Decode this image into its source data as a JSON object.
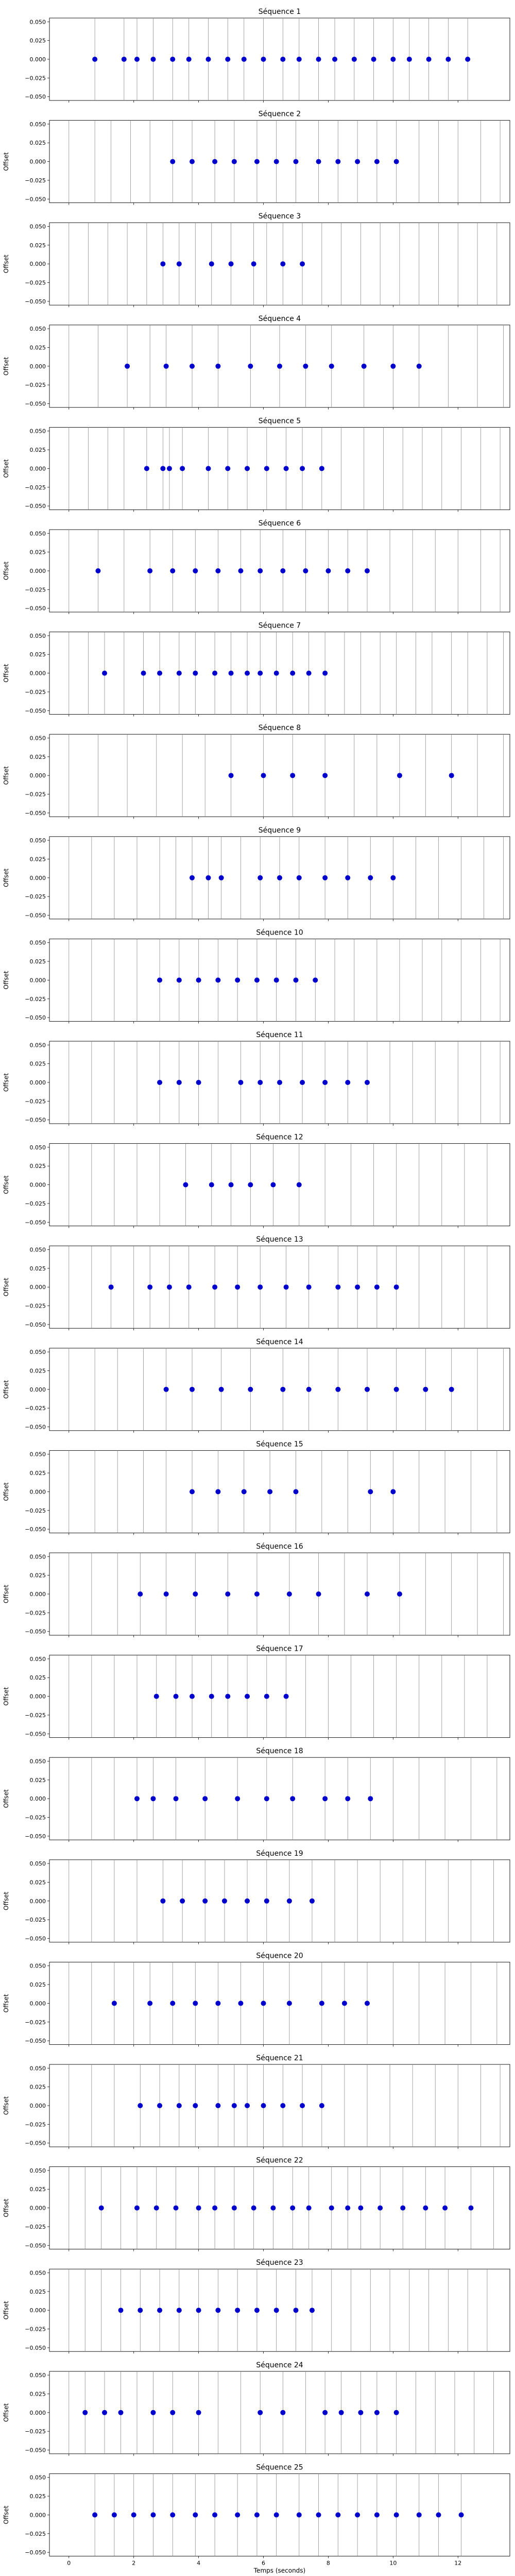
{
  "chart_data": {
    "type": "scatter",
    "xlabel": "Temps (seconds)",
    "ylabel": "Offset",
    "xlim": [
      -0.6,
      13.6
    ],
    "ylim": [
      -0.055,
      0.055
    ],
    "x_ticks": [
      0,
      2,
      4,
      6,
      8,
      10,
      12
    ],
    "y_ticks": [
      0.05,
      0.025,
      0.0,
      -0.025,
      -0.05
    ],
    "y_tick_labels": [
      "0.050",
      "0.025",
      "0.000",
      "−0.025",
      "−0.050"
    ],
    "point_color": "#0000cc",
    "line_color": "#8c8c8c",
    "ylabel_shown_from_panel": 2,
    "panels": [
      {
        "title": "Séquence 1",
        "x": [
          0.8,
          1.7,
          2.1,
          2.6,
          3.2,
          3.7,
          4.3,
          4.9,
          5.4,
          6.0,
          6.6,
          7.1,
          7.7,
          8.2,
          8.8,
          9.4,
          10.0,
          10.5,
          11.1,
          11.7,
          12.3
        ],
        "lines": [
          0.8,
          1.7,
          2.1,
          2.6,
          3.2,
          3.7,
          4.3,
          4.9,
          5.4,
          6.0,
          6.6,
          7.1,
          7.7,
          8.2,
          8.8,
          9.4,
          10.0,
          10.5,
          11.1,
          11.7,
          12.3
        ]
      },
      {
        "title": "Séquence 2",
        "x": [
          3.2,
          3.8,
          4.5,
          5.1,
          5.8,
          6.4,
          7.0,
          7.7,
          8.3,
          8.9,
          9.5,
          10.1
        ],
        "lines": [
          0.0,
          0.8,
          1.3,
          1.9,
          2.5,
          3.2,
          3.8,
          4.5,
          5.1,
          5.8,
          6.4,
          7.0,
          7.7,
          8.3,
          8.9,
          9.5,
          10.1,
          10.8,
          11.4,
          12.0,
          12.7,
          13.3
        ]
      },
      {
        "title": "Séquence 3",
        "x": [
          2.9,
          3.4,
          4.4,
          5.0,
          5.7,
          6.6,
          7.2
        ],
        "lines": [
          0.0,
          0.6,
          1.2,
          1.8,
          2.4,
          2.9,
          3.4,
          3.9,
          4.4,
          5.0,
          5.7,
          6.1,
          6.6,
          7.2,
          7.8,
          8.4,
          9.0,
          9.6,
          10.2,
          10.8,
          11.4,
          12.0,
          12.6,
          13.2
        ]
      },
      {
        "title": "Séquence 4",
        "x": [
          1.8,
          3.0,
          3.8,
          4.6,
          5.6,
          6.5,
          7.3,
          8.1,
          9.1,
          10.0,
          10.8
        ],
        "lines": [
          0.0,
          0.9,
          1.8,
          2.5,
          3.0,
          3.8,
          4.6,
          5.6,
          6.5,
          7.3,
          8.1,
          9.1,
          10.0,
          10.8,
          11.7,
          12.6,
          13.4
        ]
      },
      {
        "title": "Séquence 5",
        "x": [
          2.4,
          2.9,
          3.1,
          3.5,
          4.3,
          4.9,
          5.5,
          6.1,
          6.7,
          7.2,
          7.8
        ],
        "lines": [
          0.0,
          0.6,
          1.2,
          1.7,
          2.4,
          2.9,
          3.1,
          3.5,
          4.3,
          4.9,
          5.5,
          6.1,
          6.7,
          7.2,
          7.8,
          8.4,
          9.1,
          9.7,
          10.3,
          10.9,
          11.5,
          12.1,
          12.7,
          13.3
        ]
      },
      {
        "title": "Séquence 6",
        "x": [
          0.9,
          2.5,
          3.2,
          3.9,
          4.6,
          5.3,
          5.9,
          6.6,
          7.3,
          8.0,
          8.6,
          9.2
        ],
        "lines": [
          0.0,
          0.9,
          1.7,
          2.5,
          3.2,
          3.9,
          4.6,
          5.3,
          5.9,
          6.6,
          7.3,
          8.0,
          8.6,
          9.2,
          9.9,
          10.6,
          11.3,
          12.0,
          12.7,
          13.3
        ]
      },
      {
        "title": "Séquence 7",
        "x": [
          1.1,
          2.3,
          2.8,
          3.4,
          3.9,
          4.5,
          5.0,
          5.5,
          5.9,
          6.4,
          6.9,
          7.4,
          7.9
        ],
        "lines": [
          0.0,
          0.6,
          1.1,
          1.7,
          2.3,
          2.8,
          3.4,
          3.9,
          4.5,
          5.0,
          5.5,
          5.9,
          6.4,
          6.9,
          7.4,
          7.9,
          8.5,
          9.0,
          9.6,
          10.1,
          10.7,
          11.2,
          11.8,
          12.3,
          12.9,
          13.4
        ]
      },
      {
        "title": "Séquence 8",
        "x": [
          5.0,
          6.0,
          6.9,
          7.9,
          10.2,
          11.8
        ],
        "lines": [
          0.0,
          0.9,
          1.8,
          2.7,
          3.5,
          4.2,
          5.0,
          6.0,
          6.9,
          7.9,
          8.8,
          9.5,
          10.2,
          11.0,
          11.8,
          12.6,
          13.4
        ]
      },
      {
        "title": "Séquence 9",
        "x": [
          3.8,
          4.3,
          4.7,
          5.9,
          6.5,
          7.1,
          7.9,
          8.6,
          9.3,
          10.0
        ],
        "lines": [
          0.0,
          0.7,
          1.4,
          2.1,
          2.8,
          3.3,
          3.8,
          4.3,
          4.7,
          5.3,
          5.9,
          6.5,
          7.1,
          7.9,
          8.6,
          9.3,
          10.0,
          10.7,
          11.4,
          12.1,
          12.8,
          13.4
        ]
      },
      {
        "title": "Séquence 10",
        "x": [
          2.8,
          3.4,
          4.0,
          4.6,
          5.2,
          5.8,
          6.4,
          7.0,
          7.6
        ],
        "lines": [
          0.0,
          0.7,
          1.4,
          2.1,
          2.8,
          3.4,
          4.0,
          4.6,
          5.2,
          5.8,
          6.4,
          7.0,
          7.6,
          8.2,
          8.8,
          9.5,
          10.2,
          10.9,
          11.5,
          12.1,
          12.7,
          13.3
        ]
      },
      {
        "title": "Séquence 11",
        "x": [
          2.8,
          3.4,
          4.0,
          5.3,
          5.9,
          6.5,
          7.2,
          7.9,
          8.6,
          9.2
        ],
        "lines": [
          0.0,
          0.7,
          1.4,
          2.1,
          2.8,
          3.4,
          4.0,
          4.6,
          5.3,
          5.9,
          6.5,
          7.2,
          7.9,
          8.6,
          9.2,
          9.9,
          10.6,
          11.3,
          12.0,
          12.7,
          13.3
        ]
      },
      {
        "title": "Séquence 12",
        "x": [
          3.6,
          4.4,
          5.0,
          5.6,
          6.3,
          7.1
        ],
        "lines": [
          0.0,
          0.7,
          1.4,
          2.1,
          2.8,
          3.6,
          4.4,
          5.0,
          5.6,
          6.3,
          7.1,
          7.9,
          8.7,
          9.4,
          10.1,
          10.8,
          11.5,
          12.2,
          12.9
        ]
      },
      {
        "title": "Séquence 13",
        "x": [
          1.3,
          2.5,
          3.1,
          3.7,
          4.5,
          5.2,
          5.9,
          6.7,
          7.4,
          8.3,
          8.9,
          9.5,
          10.1
        ],
        "lines": [
          0.0,
          0.7,
          1.3,
          2.0,
          2.5,
          3.1,
          3.7,
          4.5,
          5.2,
          5.9,
          6.7,
          7.4,
          8.3,
          8.9,
          9.5,
          10.1,
          10.8,
          11.5,
          12.2,
          12.9
        ]
      },
      {
        "title": "Séquence 14",
        "x": [
          3.0,
          3.8,
          4.7,
          5.6,
          6.6,
          7.4,
          8.3,
          9.2,
          10.1,
          11.0,
          11.8
        ],
        "lines": [
          0.0,
          0.8,
          1.5,
          2.3,
          3.0,
          3.8,
          4.7,
          5.6,
          6.6,
          7.4,
          8.3,
          9.2,
          10.1,
          11.0,
          11.8,
          12.6,
          13.4
        ]
      },
      {
        "title": "Séquence 15",
        "x": [
          3.8,
          4.6,
          5.4,
          6.2,
          7.0,
          9.3,
          10.0
        ],
        "lines": [
          0.0,
          0.8,
          1.5,
          2.3,
          3.0,
          3.8,
          4.6,
          5.4,
          6.2,
          7.0,
          7.8,
          8.6,
          9.3,
          10.0,
          10.8,
          11.6,
          12.4,
          13.2
        ]
      },
      {
        "title": "Séquence 16",
        "x": [
          2.2,
          3.0,
          3.9,
          4.9,
          5.8,
          6.8,
          7.7,
          9.2,
          10.2
        ],
        "lines": [
          0.0,
          0.7,
          1.5,
          2.2,
          3.0,
          3.9,
          4.9,
          5.8,
          6.8,
          7.7,
          8.5,
          9.2,
          10.2,
          11.0,
          11.8,
          12.6,
          13.4
        ]
      },
      {
        "title": "Séquence 17",
        "x": [
          2.7,
          3.3,
          3.8,
          4.4,
          4.9,
          5.5,
          6.1,
          6.7
        ],
        "lines": [
          0.0,
          0.7,
          1.4,
          2.1,
          2.7,
          3.3,
          3.8,
          4.4,
          4.9,
          5.5,
          6.1,
          6.7,
          7.3,
          8.0,
          8.7,
          9.4,
          10.1,
          10.8,
          11.5,
          12.2,
          12.9
        ]
      },
      {
        "title": "Séquence 18",
        "x": [
          2.1,
          2.6,
          3.3,
          4.2,
          5.2,
          6.1,
          6.9,
          7.9,
          8.6,
          9.3
        ],
        "lines": [
          0.0,
          0.7,
          1.4,
          2.1,
          2.6,
          3.3,
          4.2,
          5.2,
          6.1,
          6.9,
          7.9,
          8.6,
          9.3,
          10.0,
          10.8,
          11.6,
          12.4,
          13.2
        ]
      },
      {
        "title": "Séquence 19",
        "x": [
          2.9,
          3.5,
          4.2,
          4.8,
          5.5,
          6.1,
          6.8,
          7.5
        ],
        "lines": [
          0.0,
          0.7,
          1.4,
          2.1,
          2.9,
          3.5,
          4.2,
          4.8,
          5.5,
          6.1,
          6.8,
          7.5,
          8.2,
          8.9,
          9.6,
          10.3,
          11.0,
          11.7,
          12.4,
          13.1
        ]
      },
      {
        "title": "Séquence 20",
        "x": [
          1.4,
          2.5,
          3.2,
          3.9,
          4.6,
          5.3,
          6.0,
          6.8,
          7.8,
          8.5,
          9.2
        ],
        "lines": [
          0.0,
          0.7,
          1.4,
          2.0,
          2.5,
          3.2,
          3.9,
          4.6,
          5.3,
          6.0,
          6.8,
          7.8,
          8.5,
          9.2,
          10.0,
          10.8,
          11.6,
          12.4,
          13.2
        ]
      },
      {
        "title": "Séquence 21",
        "x": [
          2.2,
          2.8,
          3.4,
          3.9,
          4.6,
          5.1,
          5.5,
          6.0,
          6.6,
          7.2,
          7.8
        ],
        "lines": [
          0.0,
          0.7,
          1.4,
          2.2,
          2.8,
          3.4,
          3.9,
          4.6,
          5.1,
          5.5,
          6.0,
          6.6,
          7.2,
          7.8,
          8.5,
          9.2,
          9.9,
          10.6,
          11.3,
          12.0,
          12.7,
          13.3
        ]
      },
      {
        "title": "Séquence 22",
        "x": [
          1.0,
          2.1,
          2.7,
          3.3,
          4.0,
          4.5,
          5.1,
          5.7,
          6.3,
          6.9,
          7.4,
          8.1,
          8.6,
          9.0,
          9.6,
          10.3,
          11.0,
          11.6,
          12.4
        ],
        "lines": [
          0.0,
          0.5,
          1.0,
          1.6,
          2.1,
          2.7,
          3.3,
          4.0,
          4.5,
          5.1,
          5.7,
          6.3,
          6.9,
          7.4,
          8.1,
          8.6,
          9.0,
          9.6,
          10.3,
          11.0,
          11.6,
          12.4,
          13.1
        ]
      },
      {
        "title": "Séquence 23",
        "x": [
          1.6,
          2.2,
          2.8,
          3.4,
          4.0,
          4.6,
          5.2,
          5.8,
          6.4,
          7.0,
          7.5
        ],
        "lines": [
          0.0,
          0.5,
          1.0,
          1.6,
          2.2,
          2.8,
          3.4,
          4.0,
          4.6,
          5.2,
          5.8,
          6.4,
          7.0,
          7.5,
          8.1,
          8.7,
          9.3,
          9.9,
          10.5,
          11.1,
          11.7,
          12.3,
          12.9
        ]
      },
      {
        "title": "Séquence 24",
        "x": [
          0.5,
          1.1,
          1.6,
          2.6,
          3.2,
          4.0,
          5.9,
          6.6,
          7.9,
          8.4,
          9.0,
          9.5,
          10.1
        ],
        "lines": [
          0.0,
          0.5,
          1.1,
          1.6,
          2.1,
          2.6,
          3.2,
          4.0,
          4.6,
          5.3,
          5.9,
          6.6,
          7.3,
          7.9,
          8.4,
          9.0,
          9.5,
          10.1,
          10.7,
          11.3,
          11.9,
          12.5,
          13.1
        ]
      },
      {
        "title": "Séquence 25",
        "x": [
          0.8,
          1.4,
          2.0,
          2.6,
          3.2,
          3.9,
          4.5,
          5.2,
          5.8,
          6.4,
          7.1,
          7.7,
          8.3,
          8.9,
          9.5,
          10.1,
          10.8,
          11.4,
          12.1
        ],
        "lines": [
          0.8,
          1.4,
          2.0,
          2.6,
          3.2,
          3.9,
          4.5,
          5.2,
          5.8,
          6.4,
          7.1,
          7.7,
          8.3,
          8.9,
          9.5,
          10.1,
          10.8,
          11.4,
          12.1
        ]
      }
    ]
  }
}
